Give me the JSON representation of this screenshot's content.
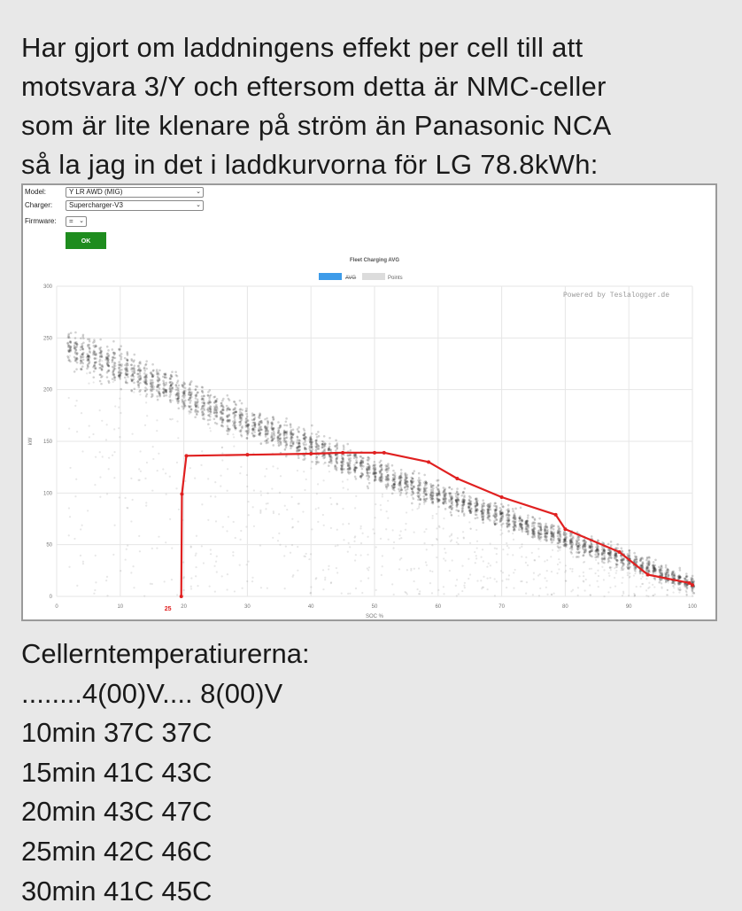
{
  "post": {
    "lines": [
      "Har gjort om laddningens effekt per cell till att",
      "motsvara 3/Y och eftersom detta är NMC-celler",
      "som är lite klenare på ström än Panasonic NCA",
      "så la jag in det i laddkurvorna för LG 78.8kWh:"
    ]
  },
  "form": {
    "model_label": "Model:",
    "model_value": "Y LR AWD (MIG)",
    "charger_label": "Charger:",
    "charger_value": "Supercharger-V3",
    "firmware_label": "Firmware:",
    "firmware_value": "=",
    "ok_label": "OK"
  },
  "chart_data": {
    "type": "scatter",
    "title": "Fleet Charging AVG",
    "xlabel": "SOC %",
    "ylabel": "kW",
    "xlim": [
      0,
      100
    ],
    "ylim": [
      0,
      300
    ],
    "x_ticks": [
      0,
      10,
      20,
      30,
      40,
      50,
      60,
      70,
      80,
      90,
      100
    ],
    "y_ticks": [
      0,
      50,
      100,
      150,
      200,
      250,
      300
    ],
    "grid": true,
    "legend": {
      "position": "top",
      "entries": [
        "AVG",
        "Points"
      ]
    },
    "watermark": "Powered by Teslalogger.de",
    "annotation": {
      "text": "25",
      "x": 17.5,
      "color": "#e02020"
    },
    "series": [
      {
        "name": "AVG",
        "type": "line",
        "color": "#e02020",
        "x": [
          19.6,
          19.7,
          20.4,
          30,
          40,
          45,
          50,
          51.5,
          58.5,
          63,
          70,
          78.5,
          80,
          88.5,
          93,
          99.5,
          100
        ],
        "y": [
          0,
          99,
          136,
          137,
          138,
          139,
          139,
          139,
          130,
          114,
          96,
          79,
          65,
          43,
          21,
          13,
          11
        ]
      },
      {
        "name": "Points",
        "type": "scatter",
        "color": "#b0b0b0",
        "band_x": [
          2,
          10,
          20,
          30,
          40,
          50,
          60,
          70,
          80,
          90,
          100
        ],
        "band_center_y": [
          240,
          222,
          194,
          168,
          146,
          120,
          98,
          78,
          55,
          35,
          12
        ]
      }
    ]
  },
  "temps": {
    "title": "Cellerntemperatiurerna:",
    "header": "........4(00)V.... 8(00)V",
    "rows": [
      "10min 37C 37C",
      "15min 41C 43C",
      "20min 43C 47C",
      "25min 42C 46C",
      "30min 41C 45C"
    ]
  }
}
